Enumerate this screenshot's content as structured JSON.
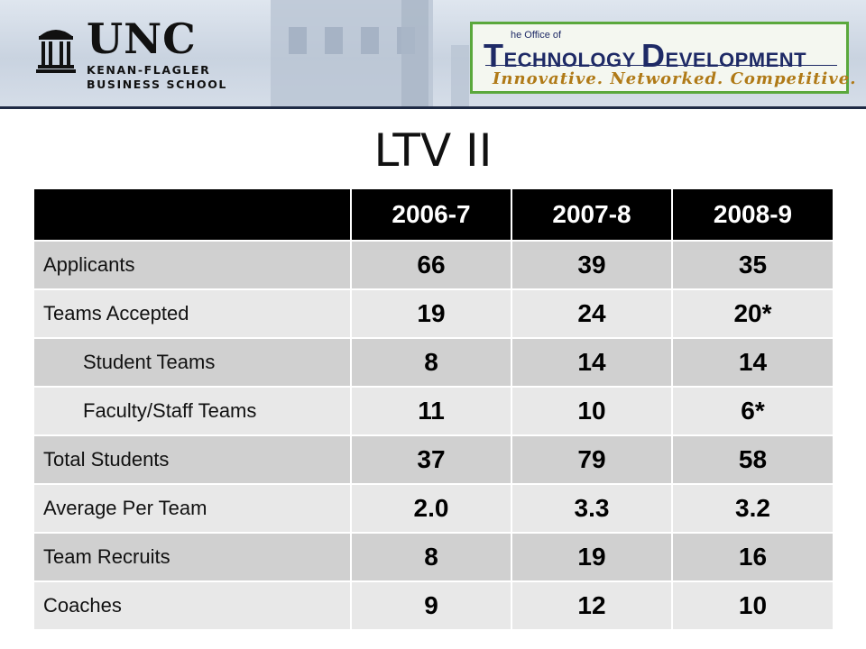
{
  "header": {
    "unc_logo": {
      "word": "UNC",
      "line1": "KENAN-FLAGLER",
      "line2": "BUSINESS SCHOOL",
      "icon": "old-well-icon"
    },
    "otd_logo": {
      "small_text": "he Office of",
      "title_t": "T",
      "title_rest1": "ECHNOLOGY ",
      "title_d": "D",
      "title_rest2": "EVELOPMENT",
      "tagline": "Innovative.  Networked.  Competitive.",
      "border_color": "#5aa83c",
      "text_color": "#1e2a66",
      "tagline_color": "#b07a17"
    }
  },
  "title": "LTV II",
  "table": {
    "columns": [
      "",
      "2006-7",
      "2007-8",
      "2008-9"
    ],
    "rows": [
      {
        "label": "Applicants",
        "indent": false,
        "values": [
          "66",
          "39",
          "35"
        ]
      },
      {
        "label": "Teams Accepted",
        "indent": false,
        "values": [
          "19",
          "24",
          "20*"
        ]
      },
      {
        "label": "Student Teams",
        "indent": true,
        "values": [
          "8",
          "14",
          "14"
        ]
      },
      {
        "label": "Faculty/Staff Teams",
        "indent": true,
        "values": [
          "11",
          "10",
          "6*"
        ]
      },
      {
        "label": "Total Students",
        "indent": false,
        "values": [
          "37",
          "79",
          "58"
        ]
      },
      {
        "label": "Average Per Team",
        "indent": false,
        "values": [
          "2.0",
          "3.3",
          "3.2"
        ]
      },
      {
        "label": "Team Recruits",
        "indent": false,
        "values": [
          "8",
          "19",
          "16"
        ]
      },
      {
        "label": "Coaches",
        "indent": false,
        "values": [
          "9",
          "12",
          "10"
        ]
      }
    ],
    "colors": {
      "header_bg": "#000000",
      "row_dark": "#d0d0d0",
      "row_light": "#e8e8e8"
    }
  }
}
